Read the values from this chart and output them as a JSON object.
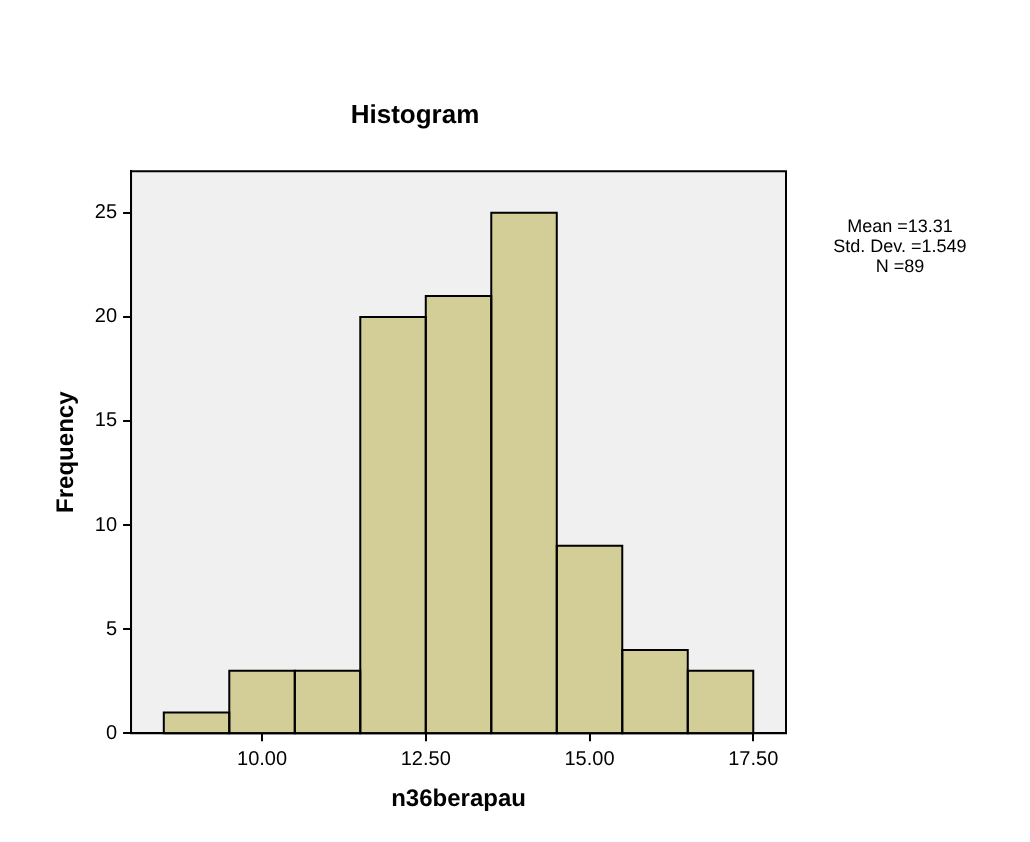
{
  "chart_data": {
    "type": "histogram",
    "title": "Histogram",
    "xlabel": "n36berapau",
    "ylabel": "Frequency",
    "bins": [
      8.5,
      9.5,
      10.5,
      11.5,
      12.5,
      13.5,
      14.5,
      15.5,
      16.5,
      17.5
    ],
    "values": [
      1,
      3,
      3,
      20,
      21,
      25,
      9,
      4,
      3
    ],
    "color": "#d3ce97",
    "xlim": [
      8.0,
      18.0
    ],
    "xticks": [
      {
        "value": 10,
        "label": "10.00"
      },
      {
        "value": 12.5,
        "label": "12.50"
      },
      {
        "value": 15,
        "label": "15.00"
      },
      {
        "value": 17.5,
        "label": "17.50"
      }
    ],
    "ylim": [
      0,
      27
    ],
    "yticks": [
      0,
      5,
      10,
      15,
      20,
      25
    ],
    "grid": false,
    "legend": false,
    "annotations": [
      "Mean =13.31",
      "Std. Dev. =1.549",
      "N =89"
    ]
  }
}
